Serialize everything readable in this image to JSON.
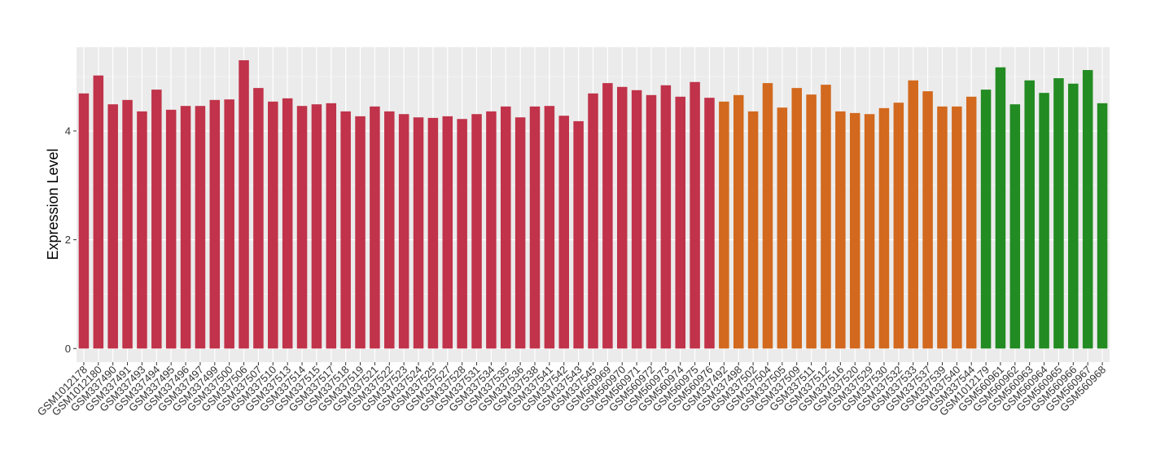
{
  "chart_data": {
    "type": "bar",
    "y_label": "Expression Level",
    "categories": [
      "GSM1012178",
      "GSM1012180",
      "GSM337490",
      "GSM337491",
      "GSM337493",
      "GSM337494",
      "GSM337495",
      "GSM337496",
      "GSM337497",
      "GSM337499",
      "GSM337500",
      "GSM337506",
      "GSM337507",
      "GSM337510",
      "GSM337513",
      "GSM337514",
      "GSM337515",
      "GSM337517",
      "GSM337518",
      "GSM337519",
      "GSM337521",
      "GSM337522",
      "GSM337523",
      "GSM337524",
      "GSM337525",
      "GSM337527",
      "GSM337528",
      "GSM337531",
      "GSM337534",
      "GSM337535",
      "GSM337536",
      "GSM337538",
      "GSM337541",
      "GSM337542",
      "GSM337543",
      "GSM337545",
      "GSM560969",
      "GSM560970",
      "GSM560971",
      "GSM560972",
      "GSM560973",
      "GSM560974",
      "GSM560975",
      "GSM560976",
      "GSM337492",
      "GSM337498",
      "GSM337502",
      "GSM337504",
      "GSM337505",
      "GSM337509",
      "GSM337511",
      "GSM337512",
      "GSM337516",
      "GSM337520",
      "GSM337529",
      "GSM337530",
      "GSM337532",
      "GSM337533",
      "GSM337537",
      "GSM337539",
      "GSM337540",
      "GSM337544",
      "GSM1012179",
      "GSM560961",
      "GSM560962",
      "GSM560963",
      "GSM560964",
      "GSM560965",
      "GSM560966",
      "GSM560967",
      "GSM560968"
    ],
    "values": [
      4.69,
      5.02,
      4.49,
      4.57,
      4.36,
      4.76,
      4.39,
      4.46,
      4.46,
      4.57,
      4.58,
      5.3,
      4.79,
      4.54,
      4.6,
      4.46,
      4.49,
      4.51,
      4.36,
      4.27,
      4.45,
      4.36,
      4.31,
      4.25,
      4.24,
      4.27,
      4.22,
      4.31,
      4.36,
      4.45,
      4.25,
      4.45,
      4.46,
      4.28,
      4.18,
      4.69,
      4.88,
      4.81,
      4.75,
      4.66,
      4.84,
      4.63,
      4.9,
      4.61,
      4.54,
      4.66,
      4.36,
      4.88,
      4.43,
      4.79,
      4.67,
      4.85,
      4.36,
      4.33,
      4.31,
      4.42,
      4.52,
      4.93,
      4.73,
      4.45,
      4.45,
      4.63,
      4.76,
      5.17,
      4.49,
      4.93,
      4.7,
      4.97,
      4.87,
      5.12,
      4.51
    ],
    "colors": [
      "#c0334a",
      "#c0334a",
      "#c0334a",
      "#c0334a",
      "#c0334a",
      "#c0334a",
      "#c0334a",
      "#c0334a",
      "#c0334a",
      "#c0334a",
      "#c0334a",
      "#c0334a",
      "#c0334a",
      "#c0334a",
      "#c0334a",
      "#c0334a",
      "#c0334a",
      "#c0334a",
      "#c0334a",
      "#c0334a",
      "#c0334a",
      "#c0334a",
      "#c0334a",
      "#c0334a",
      "#c0334a",
      "#c0334a",
      "#c0334a",
      "#c0334a",
      "#c0334a",
      "#c0334a",
      "#c0334a",
      "#c0334a",
      "#c0334a",
      "#c0334a",
      "#c0334a",
      "#c0334a",
      "#c0334a",
      "#c0334a",
      "#c0334a",
      "#c0334a",
      "#c0334a",
      "#c0334a",
      "#c0334a",
      "#c0334a",
      "#d2691e",
      "#d2691e",
      "#d2691e",
      "#d2691e",
      "#d2691e",
      "#d2691e",
      "#d2691e",
      "#d2691e",
      "#d2691e",
      "#d2691e",
      "#d2691e",
      "#d2691e",
      "#d2691e",
      "#d2691e",
      "#d2691e",
      "#d2691e",
      "#d2691e",
      "#d2691e",
      "#228b22",
      "#228b22",
      "#228b22",
      "#228b22",
      "#228b22",
      "#228b22",
      "#228b22",
      "#228b22",
      "#228b22"
    ],
    "ylim": [
      -0.25,
      5.54
    ],
    "yticks": [
      0,
      2,
      4
    ],
    "grid": true
  }
}
